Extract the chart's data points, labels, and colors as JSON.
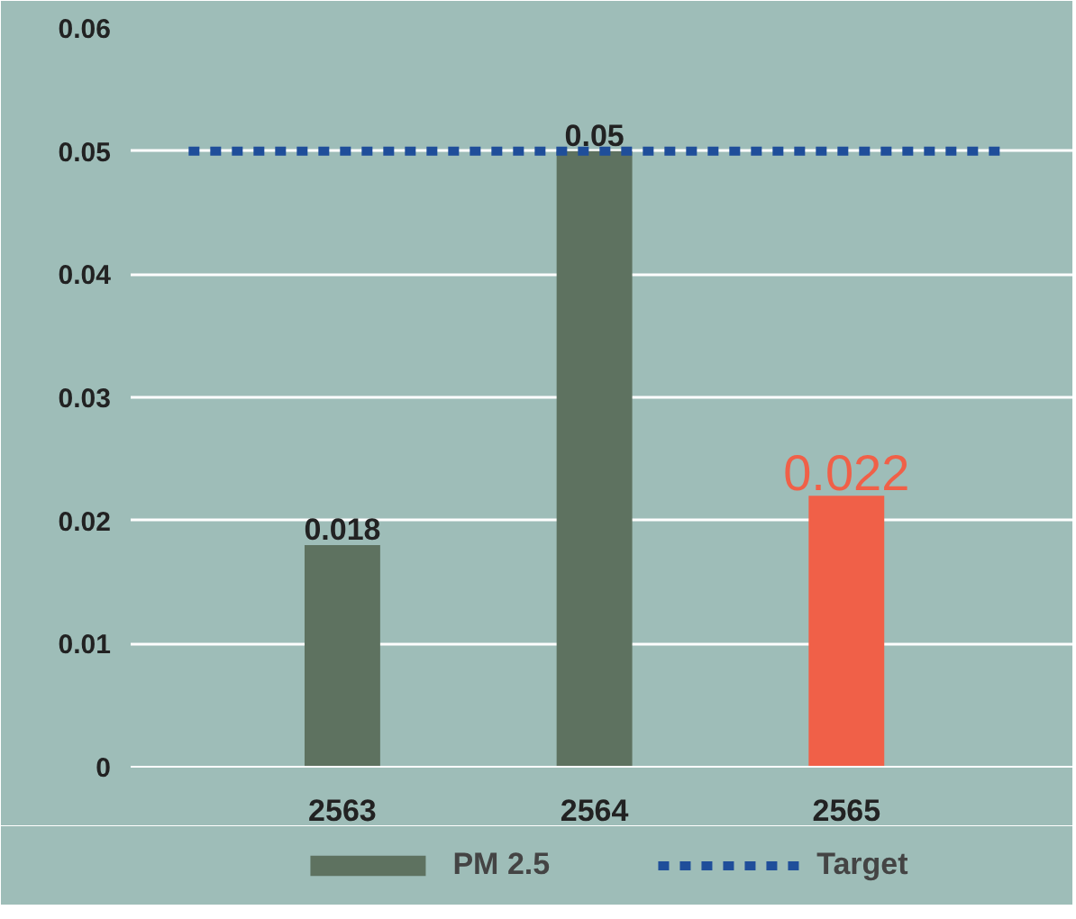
{
  "chart_data": {
    "type": "bar",
    "categories": [
      "2563",
      "2564",
      "2565"
    ],
    "series": [
      {
        "name": "PM 2.5",
        "color": "#5e7260",
        "colors": [
          "#5e7260",
          "#5e7260",
          "#f06048"
        ],
        "values": [
          0.018,
          0.05,
          0.022
        ]
      }
    ],
    "ylim": [
      0,
      0.06
    ],
    "yticks": [
      0,
      0.01,
      0.02,
      0.03,
      0.04,
      0.05,
      0.06
    ],
    "grid": "y",
    "data_labels": true,
    "legend": "bottom",
    "ref_lines": [
      {
        "axis": "y",
        "value": 0.05,
        "label": "Target",
        "color": "#1f4e9a",
        "line_style": "dashed"
      }
    ]
  }
}
